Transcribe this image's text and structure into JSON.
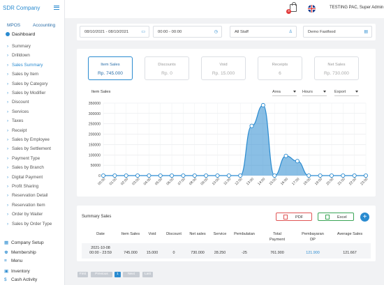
{
  "app": {
    "brand": "SDR Company"
  },
  "sidebar": {
    "tabs": [
      "MPOS",
      "Accounting"
    ],
    "dashboard": "Dashboard",
    "sub_items": [
      "Summary",
      "Drilldown",
      "Sales Summary",
      "Sales by Item",
      "Sales by Category",
      "Sales by Modifier",
      "Discount",
      "Services",
      "Taxes",
      "Receipt",
      "Sales by Employee",
      "Sales by Settlement",
      "Payment Type",
      "Sales by Branch",
      "Digital Payment",
      "Profit Sharing",
      "Reservation Detail",
      "Reservation Item",
      "Order by Waiter",
      "Sales by Order Type"
    ],
    "active_sub": "Sales Summary",
    "main_items": [
      {
        "label": "Company Setup",
        "icon": "company-icon"
      },
      {
        "label": "Membership",
        "icon": "users-icon"
      },
      {
        "label": "Menu",
        "icon": "menu-icon"
      },
      {
        "label": "Inventory",
        "icon": "inventory-icon"
      },
      {
        "label": "Cash Activity",
        "icon": "dollar-icon"
      }
    ]
  },
  "topbar": {
    "notification_count": "3",
    "user": "TESTING PAC, Super Admin"
  },
  "filters": {
    "date_range": "08/10/2021 - 08/10/2021",
    "time_range": "00:00 - 00:00",
    "staff": "All Staff",
    "outlet": "Demo Fastfood"
  },
  "cards": [
    {
      "label": "Item Sales",
      "value": "Rp. 745.000",
      "active": true
    },
    {
      "label": "Discounts",
      "value": "Rp. 0",
      "active": false
    },
    {
      "label": "Void",
      "value": "Rp. 15.000",
      "active": false
    },
    {
      "label": "Receipts",
      "value": "6",
      "active": false
    },
    {
      "label": "Net Sales",
      "value": "Rp. 730.000",
      "active": false
    }
  ],
  "chart_controls": {
    "title": "Item Sales",
    "area": "Area",
    "hours": "Hours",
    "export": "Export"
  },
  "chart_data": {
    "type": "area",
    "x": [
      "00:00",
      "01:00",
      "02:00",
      "03:00",
      "04:00",
      "05:00",
      "06:00",
      "07:00",
      "08:00",
      "09:00",
      "10:00",
      "11:00",
      "12:00",
      "13:00",
      "14:00",
      "15:00",
      "16:00",
      "17:00",
      "18:00",
      "19:00",
      "20:00",
      "21:00",
      "22:00",
      "23:00"
    ],
    "y_ticks": [
      "0",
      "50000",
      "100000",
      "150000",
      "200000",
      "250000",
      "300000",
      "350000"
    ],
    "series": [
      {
        "values": [
          0,
          0,
          0,
          0,
          0,
          0,
          0,
          0,
          0,
          0,
          0,
          0,
          0,
          240000,
          340000,
          0,
          95000,
          70000,
          0,
          0,
          0,
          0,
          0,
          0
        ]
      }
    ],
    "ylim": [
      0,
      350000
    ],
    "grid": true,
    "color": "#2a8bd0"
  },
  "summary": {
    "title": "Summary Sales",
    "pdf_label": "PDF",
    "excel_label": "Excel",
    "add_label": "+",
    "columns": [
      "Date",
      "Item Sales",
      "Void",
      "Discount",
      "Net sales",
      "Service",
      "Pembulatan",
      "Total Payment",
      "Pembayaran DP",
      "Average Sales"
    ],
    "row": [
      "2021-10-08 00:00 - 23:59",
      "745.000",
      "15.000",
      "0",
      "730.000",
      "28.250",
      "-25",
      "761.900",
      "121.900",
      "121.667"
    ]
  },
  "pagination": [
    "First",
    "Previous",
    "1",
    "Next",
    "Last"
  ]
}
